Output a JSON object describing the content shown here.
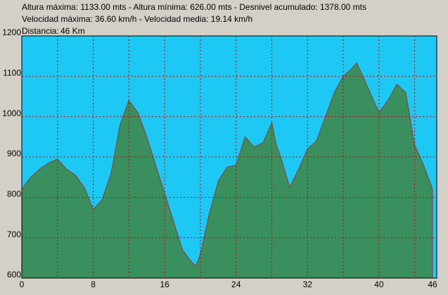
{
  "chart_data": {
    "type": "area",
    "header": [
      "Altura máxima: 1133.00 mts - Altura mínima: 626.00 mts - Desnivel acumulado: 1378.00 mts",
      "Velocidad máxima: 36.60 km/h - Velocidad media: 19.14 km/h"
    ],
    "distance_label": "Distancia:",
    "distance_value": "46 Km",
    "x": [
      0,
      1,
      2,
      3,
      4,
      5,
      6,
      7,
      8,
      9,
      10,
      11,
      12,
      13,
      14,
      15,
      16,
      17,
      18,
      19,
      19.5,
      20,
      21,
      22,
      23,
      24,
      25,
      26,
      27,
      28,
      28.5,
      29,
      30,
      31,
      32,
      33,
      34,
      35,
      36,
      37,
      37.5,
      38,
      39,
      40,
      41,
      42,
      43,
      44,
      45,
      46
    ],
    "values": [
      820,
      850,
      870,
      885,
      895,
      870,
      855,
      825,
      770,
      795,
      860,
      980,
      1040,
      1010,
      950,
      880,
      810,
      740,
      670,
      640,
      630,
      660,
      760,
      840,
      875,
      880,
      950,
      925,
      935,
      985,
      930,
      900,
      825,
      870,
      920,
      940,
      1000,
      1060,
      1100,
      1120,
      1133,
      1110,
      1060,
      1010,
      1040,
      1080,
      1060,
      930,
      880,
      820
    ],
    "color": "#3a8f5f",
    "background": "#1ec8f4",
    "xlim": [
      0,
      46
    ],
    "xticks": [
      0,
      8,
      16,
      24,
      32,
      40,
      46
    ],
    "xgrid": [
      4,
      8,
      12,
      16,
      20,
      24,
      28,
      32,
      36,
      40,
      44
    ],
    "ylim": [
      600,
      1200
    ],
    "yticks": [
      600,
      700,
      800,
      900,
      1000,
      1100,
      1200
    ],
    "grid": true
  }
}
